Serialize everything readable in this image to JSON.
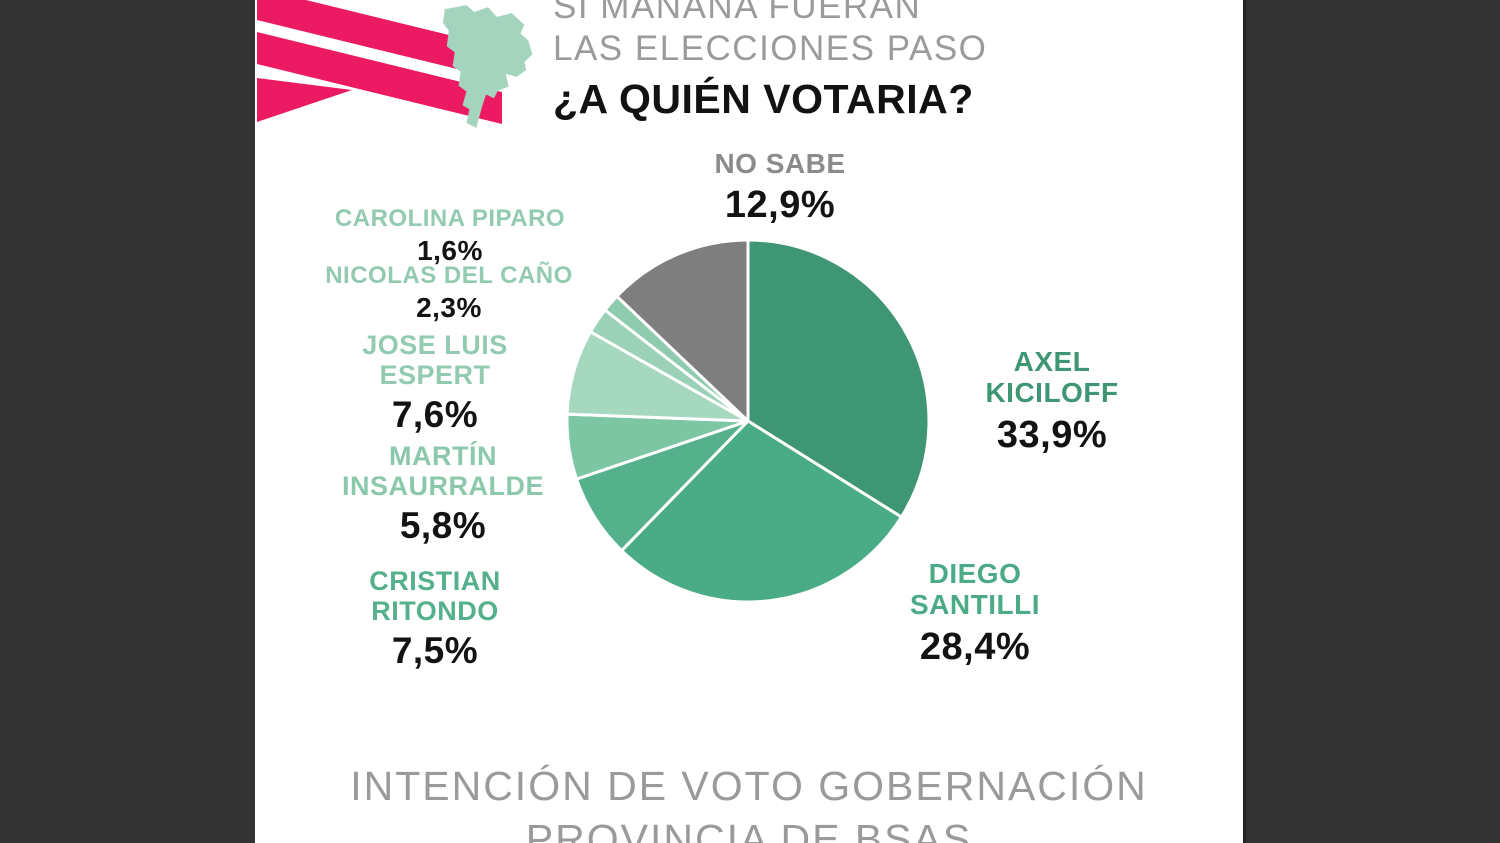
{
  "panels": {
    "color": "#333333"
  },
  "logo": {
    "icon": "flag-ribbon",
    "color": "#EC1A63"
  },
  "map": {
    "icon": "buenos-aires-province-silhouette",
    "color": "#A4D4BD"
  },
  "title": {
    "line1": "SI MAÑANA FUERAN",
    "line2": "LAS ELECCIONES PASO",
    "line3": "¿A QUIÉN VOTARIA?",
    "muted_color": "#9B9B9B",
    "strong_color": "#121212"
  },
  "footer": {
    "line1": "INTENCIÓN DE VOTO GOBERNACIÓN",
    "line2": "PROVINCIA DE BSAS",
    "color": "#9A9A9A"
  },
  "chart_data": {
    "type": "pie",
    "title": "¿A QUIÉN VOTARIA?",
    "subtitle": "SI MAÑANA FUERAN LAS ELECCIONES PASO",
    "caption": "INTENCIÓN DE VOTO GOBERNACIÓN PROVINCIA DE BSAS",
    "units": "%",
    "start_angle_deg": 0,
    "direction": "clockwise",
    "legend": "none",
    "stroke_color": "#FFFFFF",
    "slices": [
      {
        "label": "AXEL KICILOFF",
        "label_lines": [
          "AXEL",
          "KICILOFF"
        ],
        "value": 33.9,
        "display": "33,9%",
        "color": "#3F9674",
        "label_color": "#3F9674"
      },
      {
        "label": "DIEGO SANTILLI",
        "label_lines": [
          "DIEGO",
          "SANTILLI"
        ],
        "value": 28.4,
        "display": "28,4%",
        "color": "#4AAC86",
        "label_color": "#4BAB87"
      },
      {
        "label": "CRISTIAN RITONDO",
        "label_lines": [
          "CRISTIAN",
          "RITONDO"
        ],
        "value": 7.5,
        "display": "7,5%",
        "color": "#55B08C",
        "label_color": "#55B08C"
      },
      {
        "label": "MARTÍN INSAURRALDE",
        "label_lines": [
          "MARTÍN",
          "INSAURRALDE"
        ],
        "value": 5.8,
        "display": "5,8%",
        "color": "#7CC6A3",
        "label_color": "#8CC9AC"
      },
      {
        "label": "JOSE LUIS ESPERT",
        "label_lines": [
          "JOSE LUIS",
          "ESPERT"
        ],
        "value": 7.6,
        "display": "7,6%",
        "color": "#A5D8BF",
        "label_color": "#92CBB1"
      },
      {
        "label": "NICOLAS DEL CAÑO",
        "label_lines": [
          "NICOLAS DEL CAÑO"
        ],
        "value": 2.3,
        "display": "2,3%",
        "color": "#9AD1B7",
        "label_color": "#92CBB1"
      },
      {
        "label": "CAROLINA PIPARO",
        "label_lines": [
          "CAROLINA PIPARO"
        ],
        "value": 1.6,
        "display": "1,6%",
        "color": "#8FCBAE",
        "label_color": "#92CBB1"
      },
      {
        "label": "NO SABE",
        "label_lines": [
          "NO SABE"
        ],
        "value": 12.9,
        "display": "12,9%",
        "color": "#7E7E7E",
        "label_color": "#8B8B8B"
      }
    ]
  }
}
